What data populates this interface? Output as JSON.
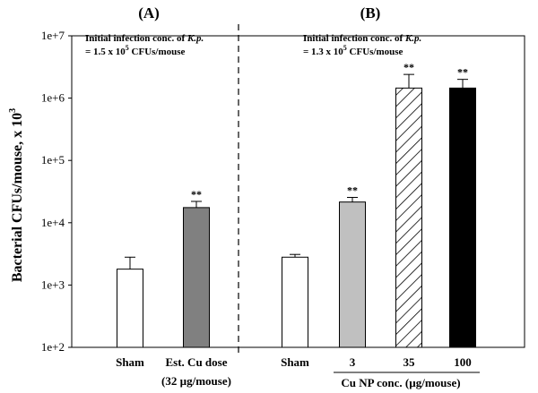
{
  "chart_data": {
    "type": "bar",
    "ylabel": "Bacterial CFUs/mouse, x 10",
    "ylabel_sup": "3",
    "yscale": "log",
    "ylim": [
      100,
      10000000
    ],
    "yticks": [
      {
        "value": 100,
        "label": "1e+2"
      },
      {
        "value": 1000,
        "label": "1e+3"
      },
      {
        "value": 10000,
        "label": "1e+4"
      },
      {
        "value": 100000,
        "label": "1e+5"
      },
      {
        "value": 1000000,
        "label": "1e+6"
      },
      {
        "value": 10000000,
        "label": "1e+7"
      }
    ],
    "panels": [
      {
        "label": "(A)",
        "note_line1_pre": "Initial infection conc. of ",
        "note_line1_em": "K.p.",
        "note_line2_pre": "= 1.5 x 10",
        "note_line2_sup": "5",
        "note_line2_post": " CFUs/mouse",
        "group_label": "",
        "bars": [
          {
            "category": "Sham",
            "sublabel": "",
            "value": 1800,
            "error_upper": 2800,
            "fill": "#ffffff",
            "pattern": "none",
            "significance": ""
          },
          {
            "category": "Est. Cu dose",
            "sublabel": "(32 µg/mouse)",
            "value": 17500,
            "error_upper": 22000,
            "fill": "#808080",
            "pattern": "none",
            "significance": "**"
          }
        ]
      },
      {
        "label": "(B)",
        "note_line1_pre": "Initial infection conc. of ",
        "note_line1_em": "K.p.",
        "note_line2_pre": "= 1.3 x 10",
        "note_line2_sup": "5",
        "note_line2_post": " CFUs/mouse",
        "group_label": "Cu NP conc. (µg/mouse)",
        "bars": [
          {
            "category": "Sham",
            "sublabel": "",
            "value": 2800,
            "error_upper": 3100,
            "fill": "#ffffff",
            "pattern": "none",
            "significance": ""
          },
          {
            "category": "3",
            "sublabel": "",
            "value": 21500,
            "error_upper": 25500,
            "fill": "#c0c0c0",
            "pattern": "none",
            "significance": "**"
          },
          {
            "category": "35",
            "sublabel": "",
            "value": 1450000,
            "error_upper": 2400000,
            "fill": "#ffffff",
            "pattern": "hatch",
            "significance": "**"
          },
          {
            "category": "100",
            "sublabel": "",
            "value": 1450000,
            "error_upper": 2000000,
            "fill": "#000000",
            "pattern": "none",
            "significance": "**"
          }
        ]
      }
    ]
  }
}
